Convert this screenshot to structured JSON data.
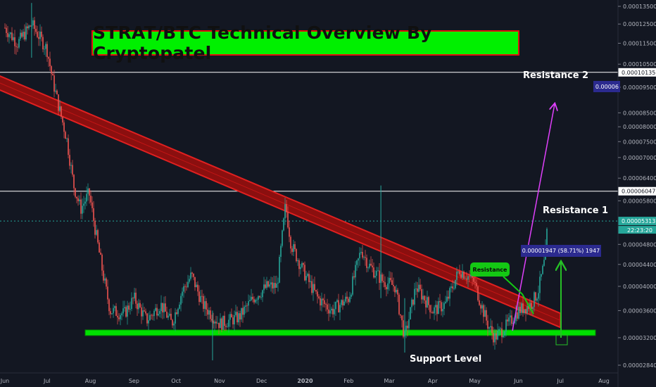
{
  "chart_data": {
    "type": "candlestick",
    "title": "STRAT/BTC Technical Overview By Cryptopatel",
    "x_ticks": [
      "Jun",
      "Jul",
      "Aug",
      "Sep",
      "Oct",
      "Nov",
      "Dec",
      "2020",
      "Feb",
      "Mar",
      "Apr",
      "May",
      "Jun",
      "Jul",
      "Aug"
    ],
    "y_ticks": [
      "0.00013500",
      "0.00012500",
      "0.00011500",
      "0.00010500",
      "0.00009500",
      "0.00008500",
      "0.00008000",
      "0.00007500",
      "0.00007000",
      "0.00006400",
      "0.00005800",
      "0.00004800",
      "0.00004400",
      "0.00004000",
      "0.00003600",
      "0.00003200",
      "0.00002840"
    ],
    "y_scale": "log",
    "price_series": [
      {
        "date": "2019-06-01",
        "value": 0.000123
      },
      {
        "date": "2019-06-10",
        "value": 0.000115
      },
      {
        "date": "2019-06-20",
        "value": 0.000125
      },
      {
        "date": "2019-07-01",
        "value": 0.000112
      },
      {
        "date": "2019-07-05",
        "value": 9.8e-05
      },
      {
        "date": "2019-07-10",
        "value": 8.6e-05
      },
      {
        "date": "2019-07-15",
        "value": 7.6e-05
      },
      {
        "date": "2019-07-20",
        "value": 6.2e-05
      },
      {
        "date": "2019-07-25",
        "value": 5.6e-05
      },
      {
        "date": "2019-07-31",
        "value": 6e-05
      },
      {
        "date": "2019-08-05",
        "value": 5e-05
      },
      {
        "date": "2019-08-10",
        "value": 4.2e-05
      },
      {
        "date": "2019-08-15",
        "value": 3.6e-05
      },
      {
        "date": "2019-08-25",
        "value": 3.55e-05
      },
      {
        "date": "2019-09-01",
        "value": 3.8e-05
      },
      {
        "date": "2019-09-10",
        "value": 3.45e-05
      },
      {
        "date": "2019-09-20",
        "value": 3.7e-05
      },
      {
        "date": "2019-09-28",
        "value": 3.4e-05
      },
      {
        "date": "2019-10-05",
        "value": 3.9e-05
      },
      {
        "date": "2019-10-12",
        "value": 4.2e-05
      },
      {
        "date": "2019-10-20",
        "value": 3.7e-05
      },
      {
        "date": "2019-11-01",
        "value": 3.4e-05
      },
      {
        "date": "2019-11-15",
        "value": 3.5e-05
      },
      {
        "date": "2019-11-25",
        "value": 3.8e-05
      },
      {
        "date": "2019-12-05",
        "value": 4e-05
      },
      {
        "date": "2019-12-12",
        "value": 4e-05
      },
      {
        "date": "2019-12-18",
        "value": 5.7e-05
      },
      {
        "date": "2019-12-22",
        "value": 4.8e-05
      },
      {
        "date": "2020-01-01",
        "value": 4.2e-05
      },
      {
        "date": "2020-01-10",
        "value": 3.8e-05
      },
      {
        "date": "2020-01-20",
        "value": 3.6e-05
      },
      {
        "date": "2020-02-01",
        "value": 3.8e-05
      },
      {
        "date": "2020-02-10",
        "value": 4.7e-05
      },
      {
        "date": "2020-02-15",
        "value": 4.4e-05
      },
      {
        "date": "2020-02-25",
        "value": 4.1e-05
      },
      {
        "date": "2020-03-05",
        "value": 4e-05
      },
      {
        "date": "2020-03-12",
        "value": 3.2e-05
      },
      {
        "date": "2020-03-20",
        "value": 4e-05
      },
      {
        "date": "2020-04-01",
        "value": 3.6e-05
      },
      {
        "date": "2020-04-10",
        "value": 3.7e-05
      },
      {
        "date": "2020-04-20",
        "value": 4.3e-05
      },
      {
        "date": "2020-04-30",
        "value": 4.1e-05
      },
      {
        "date": "2020-05-10",
        "value": 3.4e-05
      },
      {
        "date": "2020-05-15",
        "value": 3.2e-05
      },
      {
        "date": "2020-05-25",
        "value": 3.4e-05
      },
      {
        "date": "2020-06-01",
        "value": 3.6e-05
      },
      {
        "date": "2020-06-10",
        "value": 3.7e-05
      },
      {
        "date": "2020-06-15",
        "value": 3.9e-05
      },
      {
        "date": "2020-06-20",
        "value": 4.5e-05
      },
      {
        "date": "2020-06-22",
        "value": 5.31e-05
      }
    ],
    "levels": [
      {
        "label": "0.00010135",
        "value": 0.00010135,
        "color": "#ffffff"
      },
      {
        "label": "0.00006047",
        "value": 6.047e-05,
        "color": "#ffffff"
      },
      {
        "label": "0.00005313",
        "value": 5.313e-05,
        "color": "#26a69a"
      }
    ],
    "support_zone": {
      "label": "Support Level",
      "value": 3.27e-05,
      "color": "#00e000"
    },
    "trendline": {
      "from_date": "2019-06-01",
      "from_value": 9.8e-05,
      "to_date": "2020-07-01",
      "to_value": 3.45e-05,
      "color": "#e02020"
    },
    "annotations": {
      "resistance_1": "Resistance 1",
      "resistance_2": "Resistance 2",
      "resistance_bubble": "Resistance",
      "measure_label": "0.00001947 (58.71%) 1947",
      "res2_tag": "0.00006",
      "current_time": "22:23:20"
    },
    "colors": {
      "up": "#26a69a",
      "down": "#ef5350",
      "background": "#131722",
      "projection": "#e040fb"
    }
  }
}
